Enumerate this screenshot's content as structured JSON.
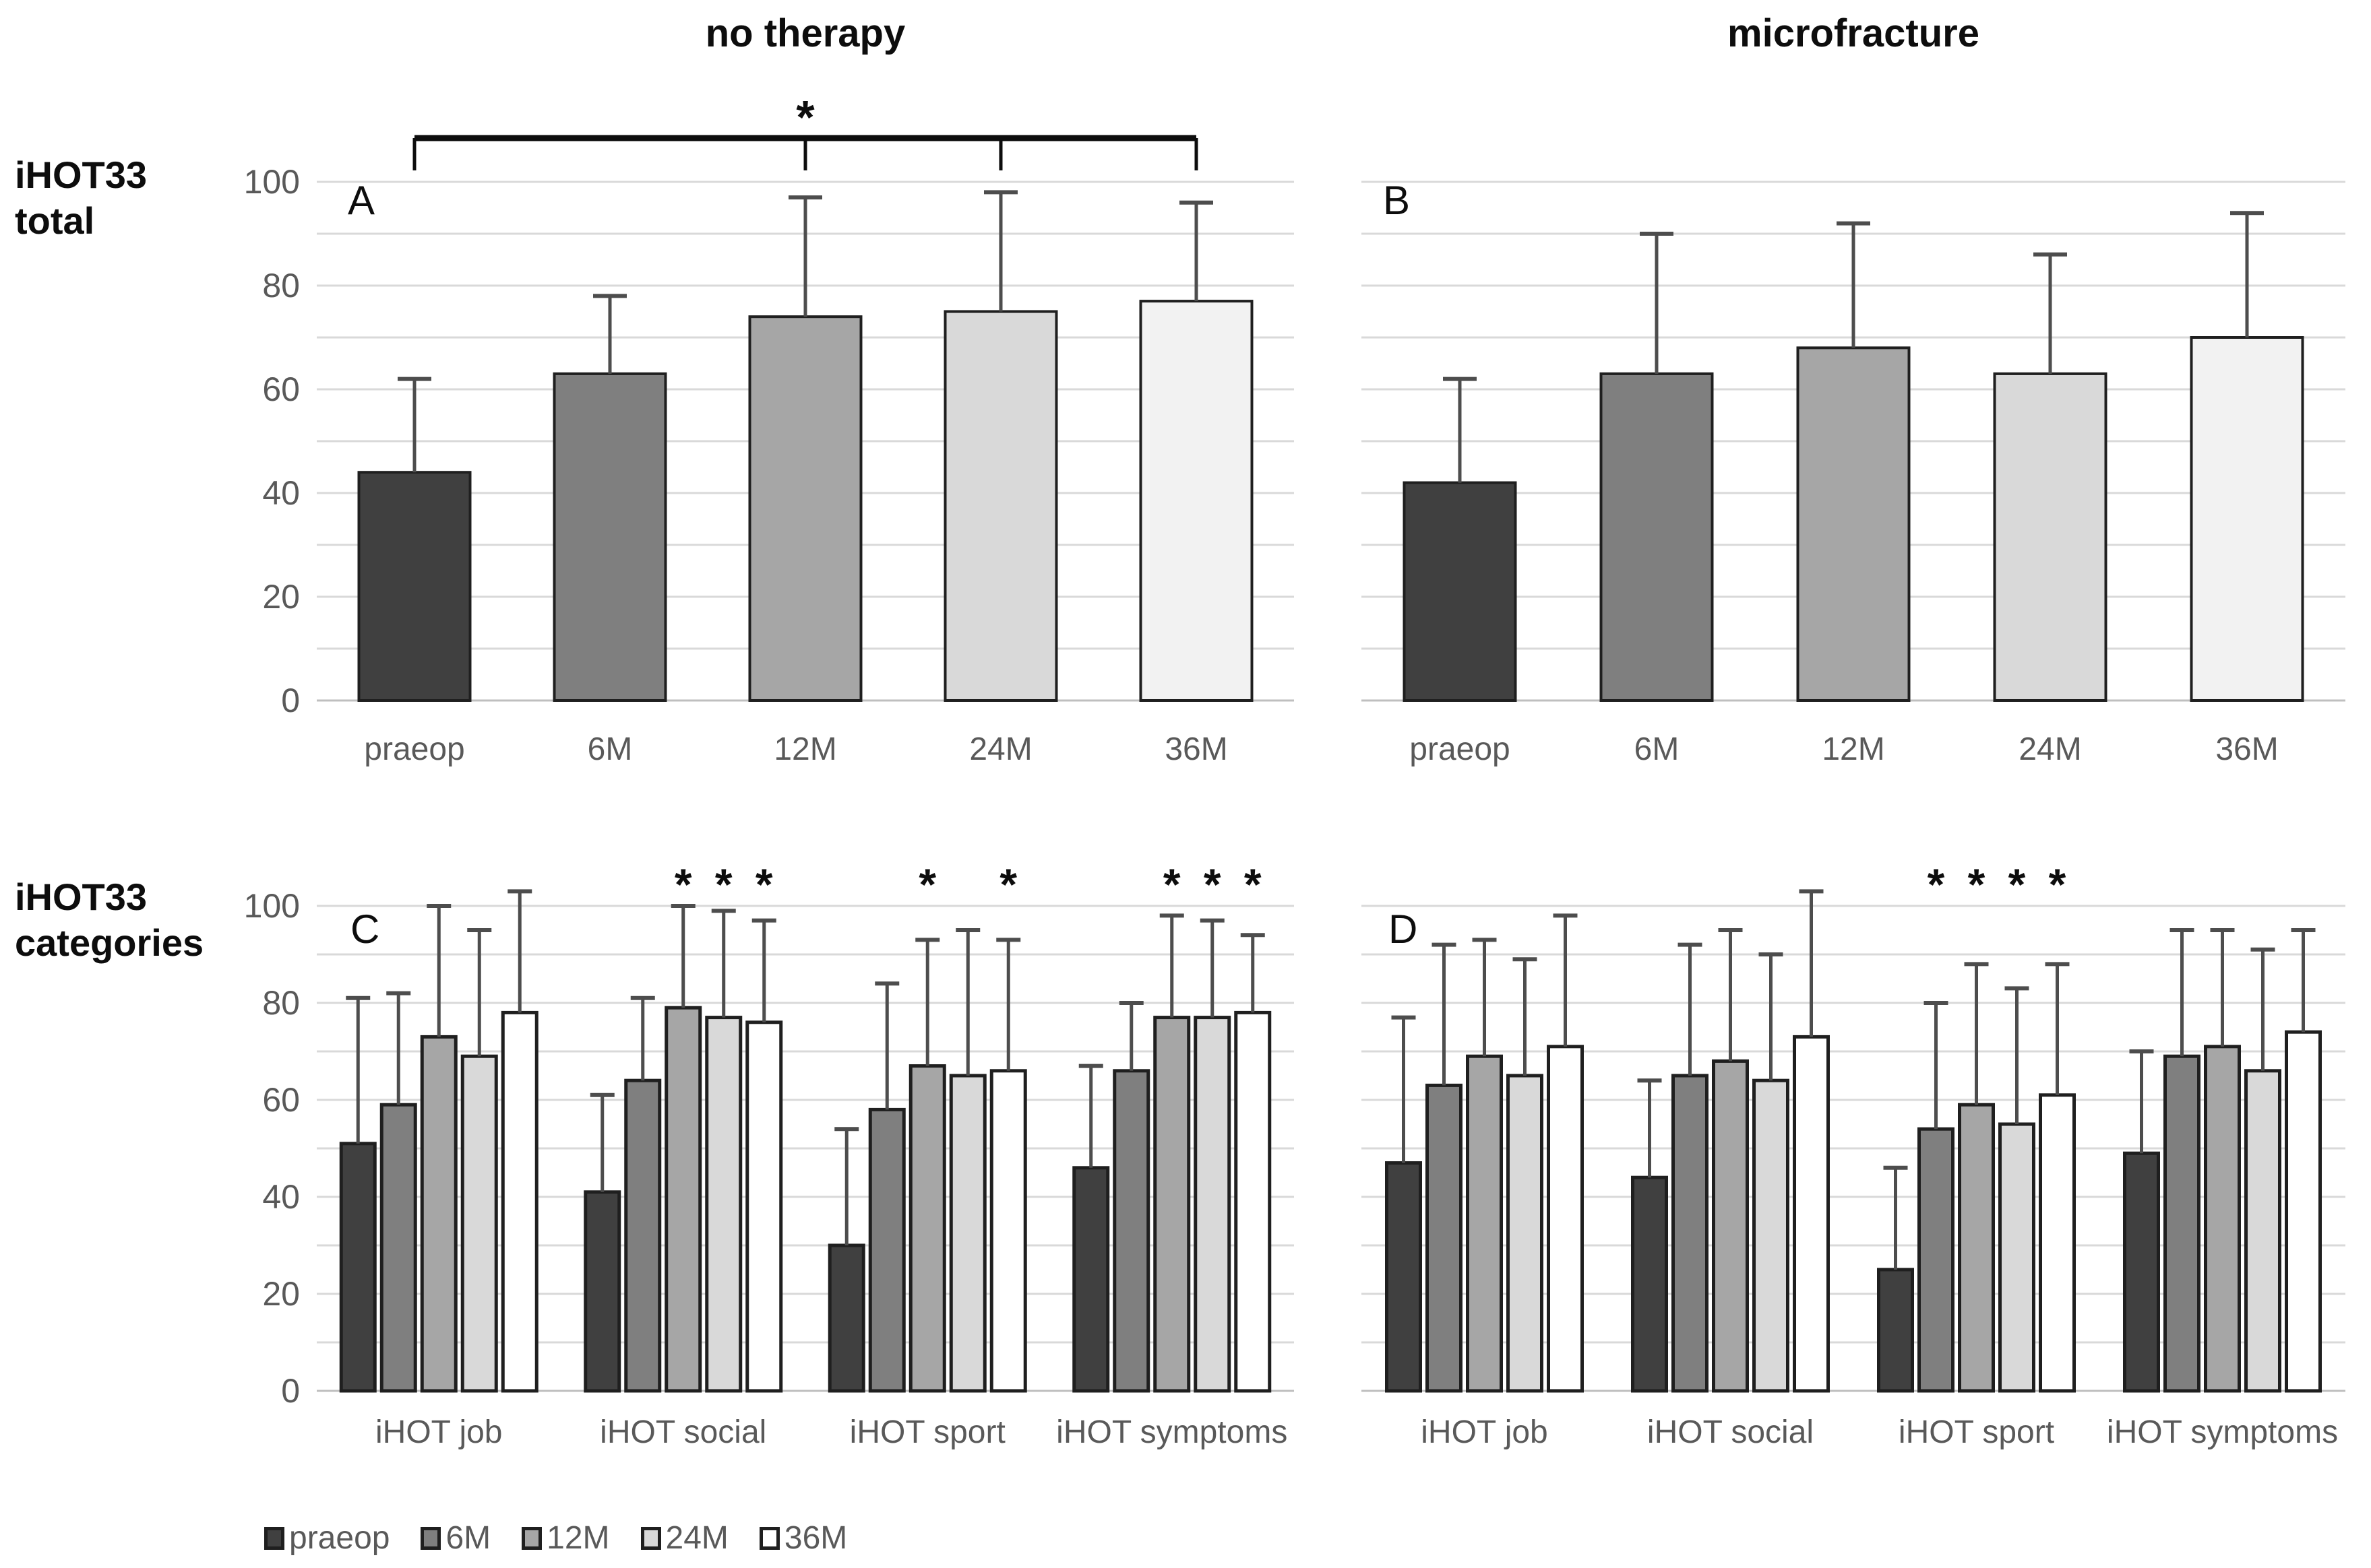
{
  "figure": {
    "column_titles": [
      "no therapy",
      "microfracture"
    ],
    "row_labels": [
      {
        "line1": "iHOT33",
        "line2": "total"
      },
      {
        "line1": "iHOT33",
        "line2": "categories"
      }
    ]
  },
  "palette": {
    "praeop": "#404040",
    "m6": "#7f7f7f",
    "m12": "#a6a6a6",
    "m24": "#d9d9d9",
    "m36_total": "#f2f2f2",
    "m36_categories": "#ffffff",
    "grid": "#d9d9d9",
    "baseline": "#bfbfbf",
    "axis_text": "#595959",
    "error_bar": "#4d4d4d",
    "bar_stroke": "#1f1f1f",
    "significance": "#0d0d0d"
  },
  "legend": {
    "items": [
      {
        "label": "praeop",
        "color": "#404040"
      },
      {
        "label": "6M",
        "color": "#7f7f7f"
      },
      {
        "label": "12M",
        "color": "#a6a6a6"
      },
      {
        "label": "24M",
        "color": "#d9d9d9"
      },
      {
        "label": "36M",
        "color": "#ffffff"
      }
    ]
  },
  "chart_data": [
    {
      "id": "A",
      "type": "bar",
      "treatment": "no therapy",
      "measure": "iHOT33 total",
      "ylim": [
        0,
        100
      ],
      "ytick_step": 20,
      "grid_step": 10,
      "show_y_labels": true,
      "categories": [
        "praeop",
        "6M",
        "12M",
        "24M",
        "36M"
      ],
      "values": [
        44,
        63,
        74,
        75,
        77
      ],
      "error_up": [
        18,
        15,
        23,
        23,
        19
      ],
      "colors": [
        "#404040",
        "#7f7f7f",
        "#a6a6a6",
        "#d9d9d9",
        "#f2f2f2"
      ],
      "significance": {
        "symbol": "*",
        "from": "praeop",
        "to": "36M",
        "tick_categories": [
          "praeop",
          "12M",
          "24M",
          "36M"
        ]
      }
    },
    {
      "id": "B",
      "type": "bar",
      "treatment": "microfracture",
      "measure": "iHOT33 total",
      "ylim": [
        0,
        100
      ],
      "ytick_step": 20,
      "grid_step": 10,
      "show_y_labels": false,
      "categories": [
        "praeop",
        "6M",
        "12M",
        "24M",
        "36M"
      ],
      "values": [
        42,
        63,
        68,
        63,
        70
      ],
      "error_up": [
        20,
        27,
        24,
        23,
        24
      ],
      "colors": [
        "#404040",
        "#7f7f7f",
        "#a6a6a6",
        "#d9d9d9",
        "#f2f2f2"
      ]
    },
    {
      "id": "C",
      "type": "grouped_bar",
      "treatment": "no therapy",
      "measure": "iHOT33 categories",
      "ylim": [
        0,
        100
      ],
      "ytick_step": 20,
      "grid_step": 10,
      "show_y_labels": true,
      "categories": [
        "iHOT job",
        "iHOT social",
        "iHOT sport",
        "iHOT symptoms"
      ],
      "series": [
        {
          "name": "praeop",
          "color": "#404040",
          "values": [
            51,
            41,
            30,
            46
          ],
          "error_up": [
            30,
            20,
            24,
            21
          ]
        },
        {
          "name": "6M",
          "color": "#7f7f7f",
          "values": [
            59,
            64,
            58,
            66
          ],
          "error_up": [
            23,
            17,
            26,
            14
          ]
        },
        {
          "name": "12M",
          "color": "#a6a6a6",
          "values": [
            73,
            79,
            67,
            77
          ],
          "error_up": [
            27,
            21,
            26,
            21
          ]
        },
        {
          "name": "24M",
          "color": "#d9d9d9",
          "values": [
            69,
            77,
            65,
            77
          ],
          "error_up": [
            26,
            22,
            30,
            20
          ]
        },
        {
          "name": "36M",
          "color": "#ffffff",
          "values": [
            78,
            76,
            66,
            78
          ],
          "error_up": [
            25,
            21,
            27,
            16
          ]
        }
      ],
      "star_symbol": "*",
      "stars": [
        {
          "category": "iHOT social",
          "series": [
            "12M",
            "24M",
            "36M"
          ]
        },
        {
          "category": "iHOT sport",
          "series": [
            "12M",
            "36M"
          ]
        },
        {
          "category": "iHOT symptoms",
          "series": [
            "12M",
            "24M",
            "36M"
          ]
        }
      ]
    },
    {
      "id": "D",
      "type": "grouped_bar",
      "treatment": "microfracture",
      "measure": "iHOT33 categories",
      "ylim": [
        0,
        100
      ],
      "ytick_step": 20,
      "grid_step": 10,
      "show_y_labels": false,
      "categories": [
        "iHOT job",
        "iHOT social",
        "iHOT sport",
        "iHOT symptoms"
      ],
      "series": [
        {
          "name": "praeop",
          "color": "#404040",
          "values": [
            47,
            44,
            25,
            49
          ],
          "error_up": [
            30,
            20,
            21,
            21
          ]
        },
        {
          "name": "6M",
          "color": "#7f7f7f",
          "values": [
            63,
            65,
            54,
            69
          ],
          "error_up": [
            29,
            27,
            26,
            26
          ]
        },
        {
          "name": "12M",
          "color": "#a6a6a6",
          "values": [
            69,
            68,
            59,
            71
          ],
          "error_up": [
            24,
            27,
            29,
            24
          ]
        },
        {
          "name": "24M",
          "color": "#d9d9d9",
          "values": [
            65,
            64,
            55,
            66
          ],
          "error_up": [
            24,
            26,
            28,
            25
          ]
        },
        {
          "name": "36M",
          "color": "#ffffff",
          "values": [
            71,
            73,
            61,
            74
          ],
          "error_up": [
            27,
            30,
            27,
            21
          ]
        }
      ],
      "star_symbol": "*",
      "stars": [
        {
          "category": "iHOT sport",
          "series": [
            "6M",
            "12M",
            "24M",
            "36M"
          ]
        }
      ]
    }
  ]
}
